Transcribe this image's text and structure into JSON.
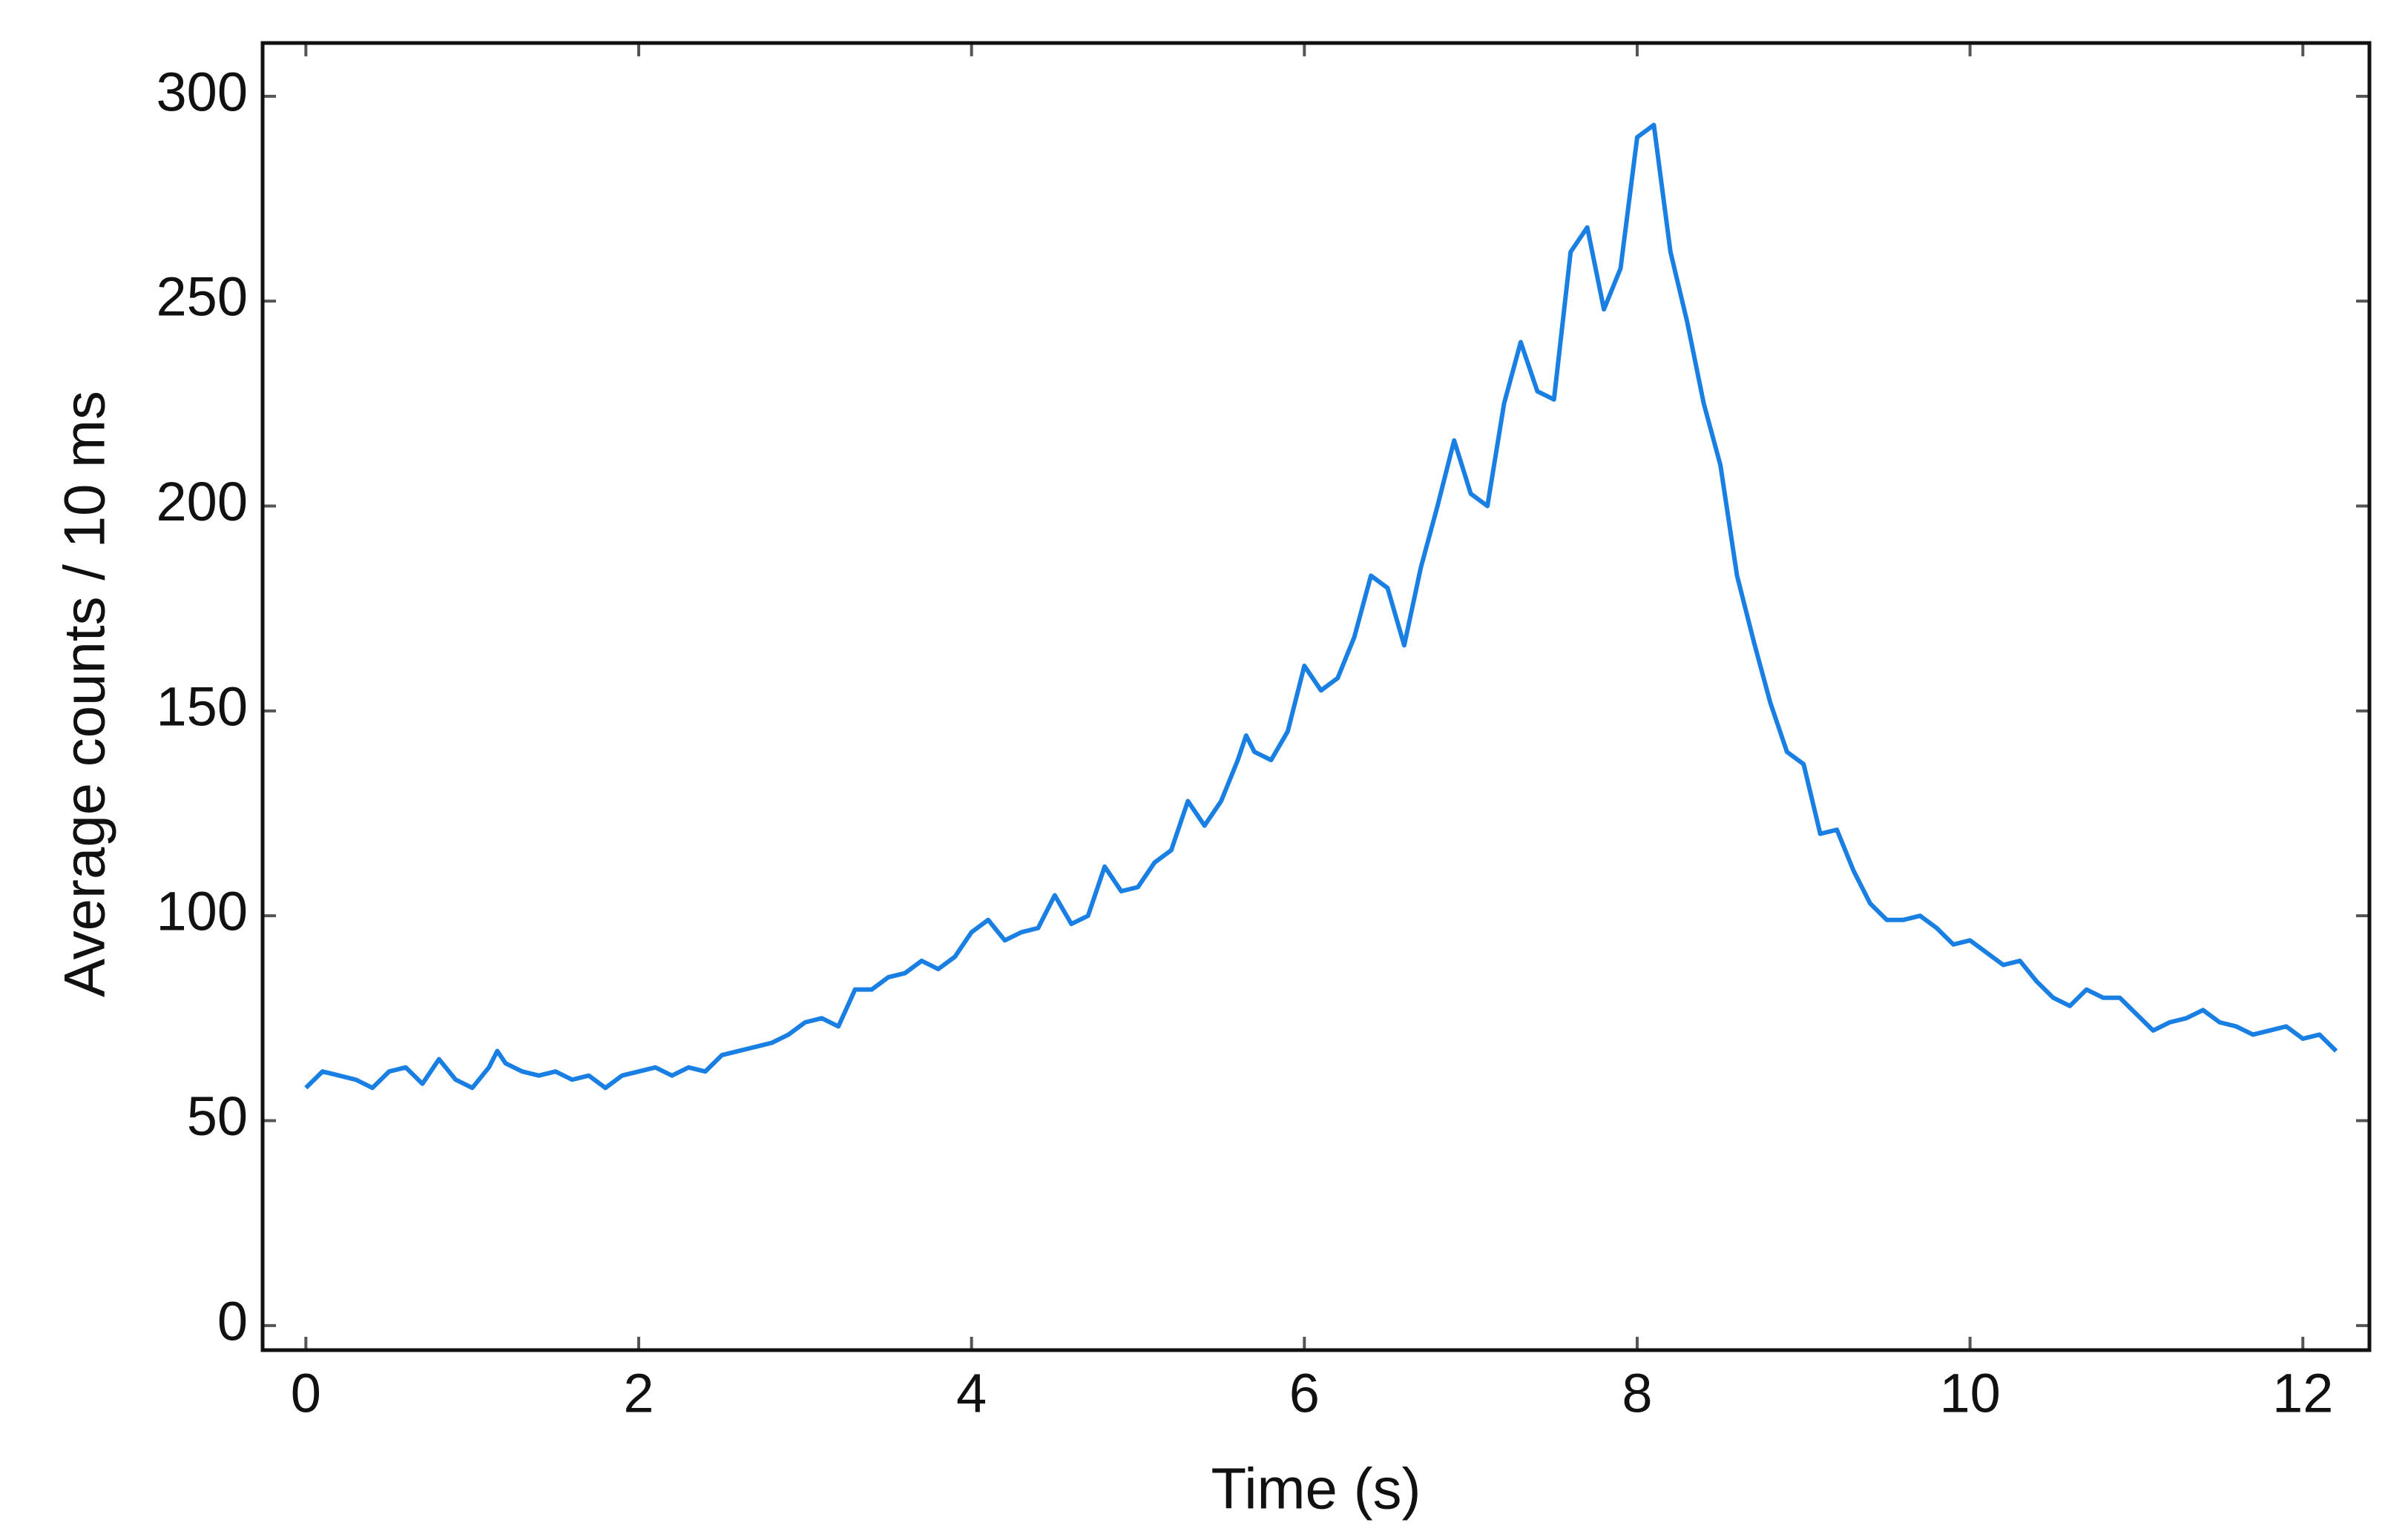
{
  "chart_data": {
    "type": "line",
    "xlabel": "Time (s)",
    "ylabel": "Average counts / 10 ms",
    "xlim": [
      -0.26,
      12.4
    ],
    "ylim": [
      -6,
      313
    ],
    "xticks": [
      0,
      2,
      4,
      6,
      8,
      10,
      12
    ],
    "yticks": [
      0,
      50,
      100,
      150,
      200,
      250,
      300
    ],
    "series": [
      {
        "color": "#1a7fe3",
        "x": [
          0,
          0.1,
          0.2,
          0.3,
          0.4,
          0.5,
          0.6,
          0.7,
          0.8,
          0.9,
          1.0,
          1.1,
          1.15,
          1.2,
          1.3,
          1.4,
          1.5,
          1.6,
          1.7,
          1.8,
          1.9,
          2.0,
          2.1,
          2.2,
          2.3,
          2.4,
          2.5,
          2.6,
          2.7,
          2.8,
          2.9,
          3.0,
          3.1,
          3.2,
          3.3,
          3.4,
          3.5,
          3.6,
          3.7,
          3.8,
          3.9,
          4.0,
          4.1,
          4.2,
          4.3,
          4.4,
          4.5,
          4.6,
          4.7,
          4.8,
          4.9,
          5.0,
          5.1,
          5.2,
          5.3,
          5.4,
          5.5,
          5.6,
          5.65,
          5.7,
          5.8,
          5.9,
          6.0,
          6.1,
          6.2,
          6.3,
          6.4,
          6.5,
          6.6,
          6.7,
          6.8,
          6.9,
          7.0,
          7.1,
          7.2,
          7.3,
          7.4,
          7.5,
          7.6,
          7.7,
          7.8,
          7.9,
          8.0,
          8.1,
          8.2,
          8.3,
          8.4,
          8.5,
          8.6,
          8.7,
          8.8,
          8.9,
          9.0,
          9.1,
          9.2,
          9.3,
          9.4,
          9.5,
          9.6,
          9.7,
          9.8,
          9.9,
          10.0,
          10.1,
          10.2,
          10.3,
          10.4,
          10.5,
          10.6,
          10.7,
          10.8,
          10.9,
          11.0,
          11.1,
          11.2,
          11.3,
          11.4,
          11.5,
          11.6,
          11.7,
          11.8,
          11.9,
          12.0,
          12.1,
          12.2
        ],
        "values": [
          58,
          62,
          61,
          60,
          58,
          62,
          63,
          59,
          65,
          60,
          58,
          63,
          67,
          64,
          62,
          61,
          62,
          60,
          61,
          58,
          61,
          62,
          63,
          61,
          63,
          62,
          66,
          67,
          68,
          69,
          71,
          74,
          75,
          73,
          82,
          82,
          85,
          86,
          89,
          87,
          90,
          96,
          99,
          94,
          96,
          97,
          105,
          98,
          100,
          112,
          106,
          107,
          113,
          116,
          128,
          122,
          128,
          138,
          144,
          140,
          138,
          145,
          161,
          155,
          158,
          168,
          183,
          180,
          166,
          185,
          200,
          216,
          203,
          200,
          225,
          240,
          228,
          226,
          262,
          268,
          248,
          258,
          290,
          293,
          262,
          245,
          225,
          210,
          183,
          167,
          152,
          140,
          137,
          120,
          121,
          111,
          103,
          99,
          99,
          100,
          97,
          93,
          94,
          91,
          88,
          89,
          84,
          80,
          78,
          82,
          80,
          80,
          76,
          72,
          74,
          75,
          77,
          74,
          73,
          71,
          72,
          73,
          70,
          71,
          67
        ]
      }
    ]
  }
}
